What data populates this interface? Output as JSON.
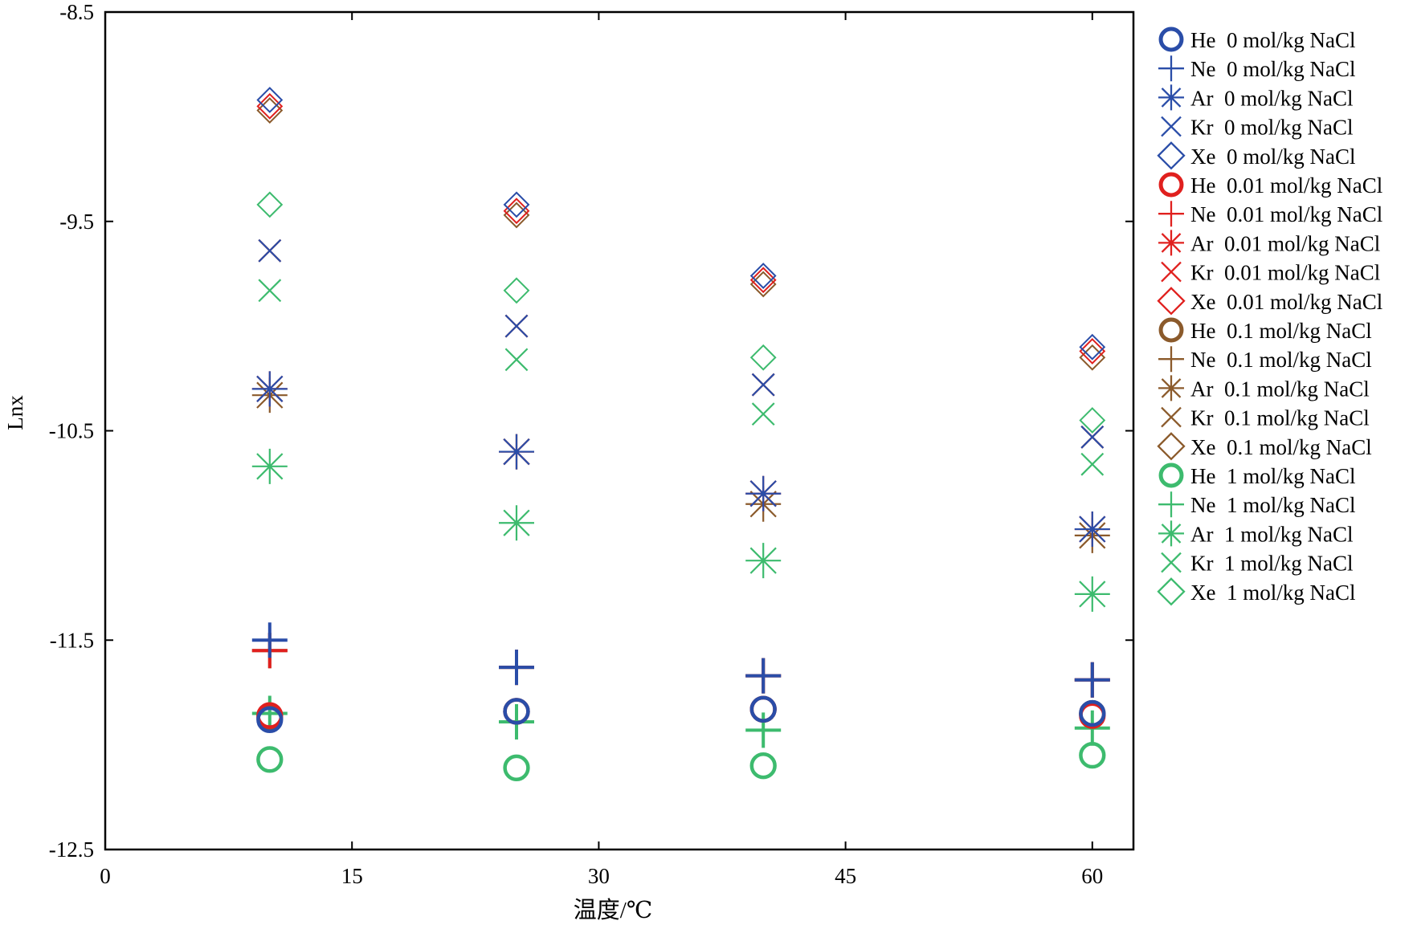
{
  "chart_data": {
    "type": "scatter",
    "xlabel": "温度/℃",
    "ylabel": "Lnx",
    "xlim": [
      0,
      62.5
    ],
    "ylim": [
      -12.5,
      -8.5
    ],
    "xticks": [
      0,
      15,
      30,
      45,
      60
    ],
    "xtick_labels": [
      "0",
      "15",
      "30",
      "45",
      "60"
    ],
    "yticks": [
      -8.5,
      -9.5,
      -10.5,
      -11.5,
      -12.5
    ],
    "ytick_labels": [
      "-8.5",
      "-9.5",
      "-10.5",
      "-11.5",
      "-12.5"
    ],
    "grid": false,
    "legend_position": "right, outside plot",
    "colors": {
      "0 mol/kg NaCl": "#2a4da8",
      "0.01 mol/kg NaCl": "#e0201e",
      "0.1 mol/kg NaCl": "#8b5a2b",
      "1 mol/kg NaCl": "#3dbb6e"
    },
    "markers": {
      "He": "circle",
      "Ne": "plus",
      "Ar": "asterisk",
      "Kr": "cross",
      "Xe": "diamond"
    },
    "series": [
      {
        "name": "He  0 mol/kg NaCl",
        "gas": "He",
        "salinity": "0 mol/kg NaCl",
        "x": [
          10,
          25,
          40,
          60
        ],
        "y": [
          -11.88,
          -11.84,
          -11.83,
          -11.85
        ]
      },
      {
        "name": "Ne  0 mol/kg NaCl",
        "gas": "Ne",
        "salinity": "0 mol/kg NaCl",
        "x": [
          10,
          25,
          40,
          60
        ],
        "y": [
          -11.5,
          -11.63,
          -11.67,
          -11.69
        ]
      },
      {
        "name": "Ar  0 mol/kg NaCl",
        "gas": "Ar",
        "salinity": "0 mol/kg NaCl",
        "x": [
          10,
          25,
          40,
          60
        ],
        "y": [
          -10.3,
          -10.6,
          -10.8,
          -10.97
        ]
      },
      {
        "name": "Kr  0 mol/kg NaCl",
        "gas": "Kr",
        "salinity": "0 mol/kg NaCl",
        "x": [
          10,
          25,
          40,
          60
        ],
        "y": [
          -9.64,
          -10.0,
          -10.28,
          -10.53
        ]
      },
      {
        "name": "Xe  0 mol/kg NaCl",
        "gas": "Xe",
        "salinity": "0 mol/kg NaCl",
        "x": [
          10,
          25,
          40,
          60
        ],
        "y": [
          -8.92,
          -9.42,
          -9.76,
          -10.1
        ]
      },
      {
        "name": "He  0.01 mol/kg NaCl",
        "gas": "He",
        "salinity": "0.01 mol/kg NaCl",
        "x": [
          10,
          25,
          40,
          60
        ],
        "y": [
          -11.86,
          -11.84,
          -11.83,
          -11.86
        ]
      },
      {
        "name": "Ne  0.01 mol/kg NaCl",
        "gas": "Ne",
        "salinity": "0.01 mol/kg NaCl",
        "x": [
          10,
          25,
          40,
          60
        ],
        "y": [
          -11.55,
          -11.63,
          -11.67,
          -11.69
        ]
      },
      {
        "name": "Ar  0.01 mol/kg NaCl",
        "gas": "Ar",
        "salinity": "0.01 mol/kg NaCl",
        "x": [
          10,
          25,
          40,
          60
        ],
        "y": [
          -10.3,
          -10.6,
          -10.8,
          -10.97
        ]
      },
      {
        "name": "Kr  0.01 mol/kg NaCl",
        "gas": "Kr",
        "salinity": "0.01 mol/kg NaCl",
        "x": [
          10,
          25,
          40,
          60
        ],
        "y": [
          -9.64,
          -10.0,
          -10.28,
          -10.53
        ]
      },
      {
        "name": "Xe  0.01 mol/kg NaCl",
        "gas": "Xe",
        "salinity": "0.01 mol/kg NaCl",
        "x": [
          10,
          25,
          40,
          60
        ],
        "y": [
          -8.95,
          -9.45,
          -9.78,
          -10.12
        ]
      },
      {
        "name": "He  0.1 mol/kg NaCl",
        "gas": "He",
        "salinity": "0.1 mol/kg NaCl",
        "x": [
          10,
          25,
          40,
          60
        ],
        "y": [
          -11.87,
          -11.84,
          -11.83,
          -11.85
        ]
      },
      {
        "name": "Ne  0.1 mol/kg NaCl",
        "gas": "Ne",
        "salinity": "0.1 mol/kg NaCl",
        "x": [
          10,
          25,
          40,
          60
        ],
        "y": [
          -11.55,
          -11.63,
          -11.67,
          -11.69
        ]
      },
      {
        "name": "Ar  0.1 mol/kg NaCl",
        "gas": "Ar",
        "salinity": "0.1 mol/kg NaCl",
        "x": [
          10,
          25,
          40,
          60
        ],
        "y": [
          -10.33,
          -10.6,
          -10.85,
          -11.0
        ]
      },
      {
        "name": "Kr  0.1 mol/kg NaCl",
        "gas": "Kr",
        "salinity": "0.1 mol/kg NaCl",
        "x": [
          10,
          25,
          40,
          60
        ],
        "y": [
          -9.64,
          -10.0,
          -10.28,
          -10.53
        ]
      },
      {
        "name": "Xe  0.1 mol/kg NaCl",
        "gas": "Xe",
        "salinity": "0.1 mol/kg NaCl",
        "x": [
          10,
          25,
          40,
          60
        ],
        "y": [
          -8.97,
          -9.47,
          -9.8,
          -10.15
        ]
      },
      {
        "name": "He  1 mol/kg NaCl",
        "gas": "He",
        "salinity": "1 mol/kg NaCl",
        "x": [
          10,
          25,
          40,
          60
        ],
        "y": [
          -12.07,
          -12.11,
          -12.1,
          -12.05
        ]
      },
      {
        "name": "Ne  1 mol/kg NaCl",
        "gas": "Ne",
        "salinity": "1 mol/kg NaCl",
        "x": [
          10,
          25,
          40,
          60
        ],
        "y": [
          -11.85,
          -11.89,
          -11.93,
          -11.92
        ]
      },
      {
        "name": "Ar  1 mol/kg NaCl",
        "gas": "Ar",
        "salinity": "1 mol/kg NaCl",
        "x": [
          10,
          25,
          40,
          60
        ],
        "y": [
          -10.67,
          -10.94,
          -11.12,
          -11.28
        ]
      },
      {
        "name": "Kr  1 mol/kg NaCl",
        "gas": "Kr",
        "salinity": "1 mol/kg NaCl",
        "x": [
          10,
          25,
          40,
          60
        ],
        "y": [
          -9.83,
          -10.16,
          -10.42,
          -10.66
        ]
      },
      {
        "name": "Xe  1 mol/kg NaCl",
        "gas": "Xe",
        "salinity": "1 mol/kg NaCl",
        "x": [
          10,
          25,
          40,
          60
        ],
        "y": [
          -9.42,
          -9.83,
          -10.15,
          -10.45
        ]
      }
    ]
  }
}
